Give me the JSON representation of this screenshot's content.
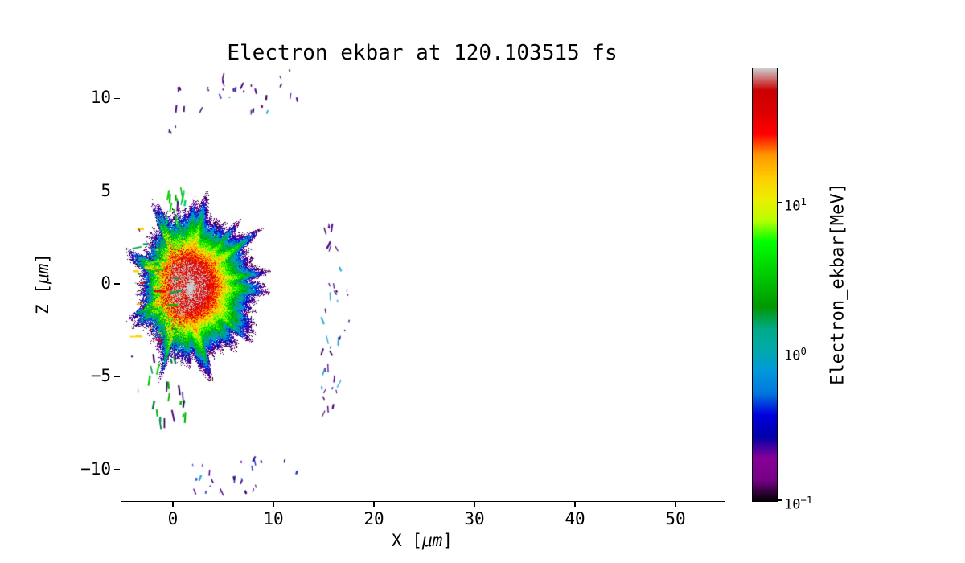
{
  "figure": {
    "background": "#ffffff",
    "frame_color": "#000000",
    "text_color": "#000000"
  },
  "chart_data": {
    "type": "heatmap",
    "title": "Electron_ekbar at 120.103515 fs",
    "xlabel": "X [μm]",
    "xlabel_prefix": "X [",
    "xlabel_unit": "μm",
    "xlabel_suffix": "]",
    "ylabel": "Z [μm]",
    "ylabel_prefix": "Z [",
    "ylabel_unit": "μm",
    "ylabel_suffix": "]",
    "xlim": [
      -5.2,
      54.8
    ],
    "ylim": [
      -11.67,
      11.67
    ],
    "xticks": {
      "values": [
        0,
        10,
        20,
        30,
        40,
        50
      ],
      "labels": [
        "0",
        "10",
        "20",
        "30",
        "40",
        "50"
      ]
    },
    "yticks": {
      "values": [
        -10,
        -5,
        0,
        5,
        10
      ],
      "labels": [
        "−10",
        "−5",
        "0",
        "5",
        "10"
      ]
    },
    "grid": false,
    "colorbar": {
      "label": "Electron_ekbar[MeV]",
      "scale": "log",
      "min": 0.1,
      "max": 80,
      "ticks": [
        {
          "value": 10,
          "base": "10",
          "exp": "1"
        },
        {
          "value": 1,
          "base": "10",
          "exp": "0"
        },
        {
          "value": 0.1,
          "base": "10",
          "exp": "−1"
        }
      ],
      "colormap": "nipy_spectral"
    },
    "colormap_anchors": [
      [
        0.0,
        0.0,
        0.0,
        0.0
      ],
      [
        0.05,
        0.4667,
        0.0,
        0.5333
      ],
      [
        0.1,
        0.5333,
        0.0,
        0.6
      ],
      [
        0.15,
        0.0,
        0.0,
        0.6667
      ],
      [
        0.2,
        0.0,
        0.0,
        0.8667
      ],
      [
        0.25,
        0.0,
        0.4667,
        0.8667
      ],
      [
        0.3,
        0.0,
        0.6,
        0.8667
      ],
      [
        0.35,
        0.0,
        0.6667,
        0.6667
      ],
      [
        0.4,
        0.0,
        0.6667,
        0.5333
      ],
      [
        0.45,
        0.0,
        0.6,
        0.0
      ],
      [
        0.5,
        0.0,
        0.7333,
        0.0
      ],
      [
        0.55,
        0.0,
        0.8667,
        0.0
      ],
      [
        0.6,
        0.0,
        1.0,
        0.0
      ],
      [
        0.65,
        0.7333,
        1.0,
        0.0
      ],
      [
        0.7,
        0.9333,
        0.9333,
        0.0
      ],
      [
        0.75,
        1.0,
        0.8,
        0.0
      ],
      [
        0.8,
        1.0,
        0.6,
        0.0
      ],
      [
        0.85,
        1.0,
        0.0,
        0.0
      ],
      [
        0.9,
        0.8667,
        0.0,
        0.0
      ],
      [
        0.95,
        0.8,
        0.0,
        0.0
      ],
      [
        1.0,
        0.8,
        0.8,
        0.8
      ]
    ],
    "description": "2D map of electron mean kinetic energy at 120.103515 fs: hot core near x≈1 μm, z≈0 μm peaking around 60–80 MeV (red with small gray spot), surrounded by concentric yellow→green→cyan→blue→purple shells extending to x≈10 μm and |z|≈4.5 μm with ragged spiky edges; green/yellow jets on the left side (x≈−4–0 μm), a vertical band of faint 0.1–1 MeV debris near x≈15–17 μm, and sparse purple/blue specks near z≈±10–11 μm.",
    "blob": {
      "cx": 1.1,
      "cz": -0.1,
      "rx_right": 5.4,
      "rx_left": 3.4,
      "rz": 3.05,
      "peak_log": 1.78,
      "peak_mev": 60
    },
    "clusters": [
      {
        "name": "top-specks",
        "seed": 11,
        "count": 30,
        "x": [
          -0.6,
          12.6
        ],
        "z": [
          9.3,
          11.6
        ],
        "len": [
          0.15,
          0.75
        ],
        "angle": [
          62,
          118
        ],
        "width": [
          1,
          2.4
        ],
        "colors": [
          "#4c0082",
          "#38006b",
          "#5b00a5",
          "#4c0082",
          "#2a0060",
          "#2233cc",
          "#38006b",
          "#29a8d8",
          "#4c0082",
          "#38006b"
        ]
      },
      {
        "name": "upper-stray",
        "seed": 88,
        "count": 3,
        "x": [
          -1.0,
          0.4
        ],
        "z": [
          7.9,
          8.8
        ],
        "len": [
          0.15,
          0.4
        ],
        "angle": [
          60,
          120
        ],
        "width": [
          1,
          2
        ],
        "colors": [
          "#4c0082",
          "#38006b"
        ]
      },
      {
        "name": "left-jets",
        "seed": 22,
        "count": 30,
        "x": [
          -3.9,
          0.3
        ],
        "z": [
          -3.1,
          3.3
        ],
        "len": [
          0.3,
          1.3
        ],
        "angle": [
          -12,
          12
        ],
        "width": [
          1.5,
          3
        ],
        "colors": [
          "#00c000",
          "#7fe800",
          "#ffd000",
          "#ff9000",
          "#00a050",
          "#e80000",
          "#00c000",
          "#ffd000",
          "#008840"
        ]
      },
      {
        "name": "upper-spikes",
        "seed": 33,
        "count": 16,
        "x": [
          -0.9,
          1.4
        ],
        "z": [
          3.0,
          5.0
        ],
        "len": [
          0.3,
          1.1
        ],
        "angle": [
          78,
          102
        ],
        "width": [
          1.5,
          2.6
        ],
        "colors": [
          "#00b000",
          "#008855",
          "#00c878",
          "#4c0082",
          "#00d400"
        ]
      },
      {
        "name": "lower-spikes",
        "seed": 44,
        "count": 24,
        "x": [
          -2.9,
          1.7
        ],
        "z": [
          -7.8,
          -3.2
        ],
        "len": [
          0.3,
          1.2
        ],
        "angle": [
          75,
          105
        ],
        "width": [
          1.5,
          2.6
        ],
        "colors": [
          "#00b000",
          "#007745",
          "#00d400",
          "#4c0082",
          "#2a0050",
          "#00a050"
        ]
      },
      {
        "name": "mid-band",
        "seed": 55,
        "count": 36,
        "x": [
          14.7,
          16.6
        ],
        "z": [
          -7.2,
          3.3
        ],
        "len": [
          0.2,
          0.9
        ],
        "angle": [
          55,
          125
        ],
        "width": [
          1,
          2.4
        ],
        "colors": [
          "#4c0082",
          "#38006b",
          "#5b00a5",
          "#30006b",
          "#2233cc",
          "#4c0082",
          "#29a8d8",
          "#38006b",
          "#4c0082"
        ]
      },
      {
        "name": "far-dots",
        "seed": 99,
        "count": 4,
        "x": [
          17.0,
          17.9
        ],
        "z": [
          -2.8,
          0.3
        ],
        "len": [
          0.12,
          0.3
        ],
        "angle": [
          60,
          120
        ],
        "width": [
          1,
          2
        ],
        "colors": [
          "#4c0082",
          "#38006b"
        ]
      },
      {
        "name": "bottom-specks",
        "seed": 66,
        "count": 26,
        "x": [
          1.6,
          12.6
        ],
        "z": [
          -11.2,
          -9.4
        ],
        "len": [
          0.15,
          0.8
        ],
        "angle": [
          62,
          118
        ],
        "width": [
          1,
          2.4
        ],
        "colors": [
          "#4c0082",
          "#38006b",
          "#5b00a5",
          "#2233cc",
          "#4c0082",
          "#29a8d8",
          "#38006b",
          "#3344cc",
          "#4c0082"
        ]
      },
      {
        "name": "stray-dashes",
        "seed": 77,
        "count": 9,
        "x": [
          -4.4,
          -2.4
        ],
        "z": [
          -6.2,
          5.0
        ],
        "len": [
          0.15,
          0.5
        ],
        "angle": [
          0,
          180
        ],
        "width": [
          1,
          2
        ],
        "colors": [
          "#4c0082",
          "#00b000",
          "#38006b",
          "#00c000"
        ]
      }
    ]
  }
}
